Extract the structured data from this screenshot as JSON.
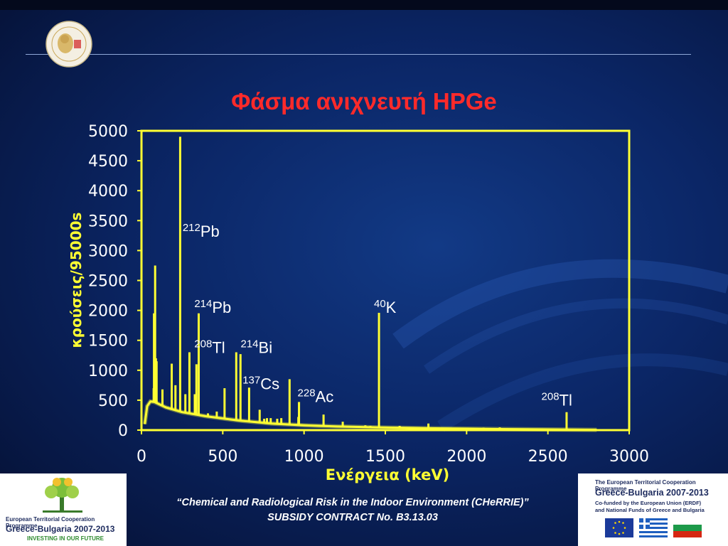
{
  "slide": {
    "title": "Φάσμα ανιχνευτή HPGe"
  },
  "chart_data": {
    "type": "line",
    "title": "Φάσμα ανιχνευτή HPGe",
    "xlabel": "Ενέργεια (keV)",
    "ylabel": "κρούσεις/95000s",
    "xlim": [
      0,
      3000
    ],
    "ylim": [
      0,
      5000
    ],
    "x_ticks": [
      "0",
      "500",
      "1000",
      "1500",
      "2000",
      "2500",
      "3000"
    ],
    "y_ticks": [
      "0",
      "500",
      "1000",
      "1500",
      "2000",
      "2500",
      "3000",
      "3500",
      "4000",
      "4500",
      "5000"
    ],
    "series_color": "#ffff33",
    "background": [
      [
        20,
        100
      ],
      [
        35,
        400
      ],
      [
        55,
        480
      ],
      [
        80,
        470
      ],
      [
        150,
        380
      ],
      [
        250,
        300
      ],
      [
        400,
        230
      ],
      [
        600,
        160
      ],
      [
        800,
        110
      ],
      [
        1000,
        80
      ],
      [
        1200,
        60
      ],
      [
        1460,
        45
      ],
      [
        1800,
        30
      ],
      [
        2200,
        18
      ],
      [
        2600,
        10
      ],
      [
        2800,
        5
      ]
    ],
    "peaks": [
      {
        "energy": 75,
        "counts": 700
      },
      {
        "energy": 77,
        "counts": 1950
      },
      {
        "energy": 84,
        "counts": 2750
      },
      {
        "energy": 89,
        "counts": 1200
      },
      {
        "energy": 93,
        "counts": 1150
      },
      {
        "energy": 129,
        "counts": 680
      },
      {
        "energy": 186,
        "counts": 1110
      },
      {
        "energy": 209,
        "counts": 750
      },
      {
        "energy": 238,
        "counts": 4900
      },
      {
        "energy": 270,
        "counts": 600
      },
      {
        "energy": 295,
        "counts": 1300
      },
      {
        "energy": 328,
        "counts": 600
      },
      {
        "energy": 338,
        "counts": 1100
      },
      {
        "energy": 352,
        "counts": 1950
      },
      {
        "energy": 409,
        "counts": 280
      },
      {
        "energy": 463,
        "counts": 310
      },
      {
        "energy": 511,
        "counts": 700
      },
      {
        "energy": 583,
        "counts": 1300
      },
      {
        "energy": 609,
        "counts": 1270
      },
      {
        "energy": 662,
        "counts": 710
      },
      {
        "energy": 727,
        "counts": 340
      },
      {
        "energy": 755,
        "counts": 190
      },
      {
        "energy": 772,
        "counts": 200
      },
      {
        "energy": 795,
        "counts": 200
      },
      {
        "energy": 835,
        "counts": 190
      },
      {
        "energy": 860,
        "counts": 200
      },
      {
        "energy": 911,
        "counts": 850
      },
      {
        "energy": 965,
        "counts": 220
      },
      {
        "energy": 969,
        "counts": 470
      },
      {
        "energy": 1120,
        "counts": 260
      },
      {
        "energy": 1238,
        "counts": 140
      },
      {
        "energy": 1377,
        "counts": 80
      },
      {
        "energy": 1408,
        "counts": 70
      },
      {
        "energy": 1461,
        "counts": 1960
      },
      {
        "energy": 1588,
        "counts": 70
      },
      {
        "energy": 1630,
        "counts": 50
      },
      {
        "energy": 1765,
        "counts": 110
      },
      {
        "energy": 2104,
        "counts": 40
      },
      {
        "energy": 2204,
        "counts": 45
      },
      {
        "energy": 2448,
        "counts": 25
      },
      {
        "energy": 2615,
        "counts": 300
      }
    ],
    "annotations": [
      {
        "mass": "212",
        "element": "Pb",
        "x": 253,
        "y": 3230
      },
      {
        "mass": "214",
        "element": "Pb",
        "x": 325,
        "y": 1960
      },
      {
        "mass": "208",
        "element": "Tl",
        "x": 325,
        "y": 1290
      },
      {
        "mass": "214",
        "element": "Bi",
        "x": 610,
        "y": 1290
      },
      {
        "mass": "137",
        "element": "Cs",
        "x": 622,
        "y": 680
      },
      {
        "mass": "228",
        "element": "Ac",
        "x": 960,
        "y": 470
      },
      {
        "mass": "40",
        "element": "K",
        "x": 1430,
        "y": 1960
      },
      {
        "mass": "208",
        "element": "Tl",
        "x": 2460,
        "y": 410
      }
    ]
  },
  "footer": {
    "project_line": "“Chemical and Radiological Risk in the Indoor Environment (CHeRRIE)”",
    "contract_line": "SUBSIDY CONTRACT No. B3.13.03"
  },
  "logos": {
    "left": {
      "line1": "European Territorial Cooperation Programme",
      "line2": "Greece-Bulgaria 2007-2013",
      "line3": "INVESTING IN OUR FUTURE"
    },
    "right": {
      "line1": "The European Territorial Cooperation Programme",
      "line2": "Greece-Bulgaria 2007-2013",
      "line3": "Co-funded by the European Union (ERDF)",
      "line4": "and National Funds of Greece and Bulgaria"
    }
  }
}
